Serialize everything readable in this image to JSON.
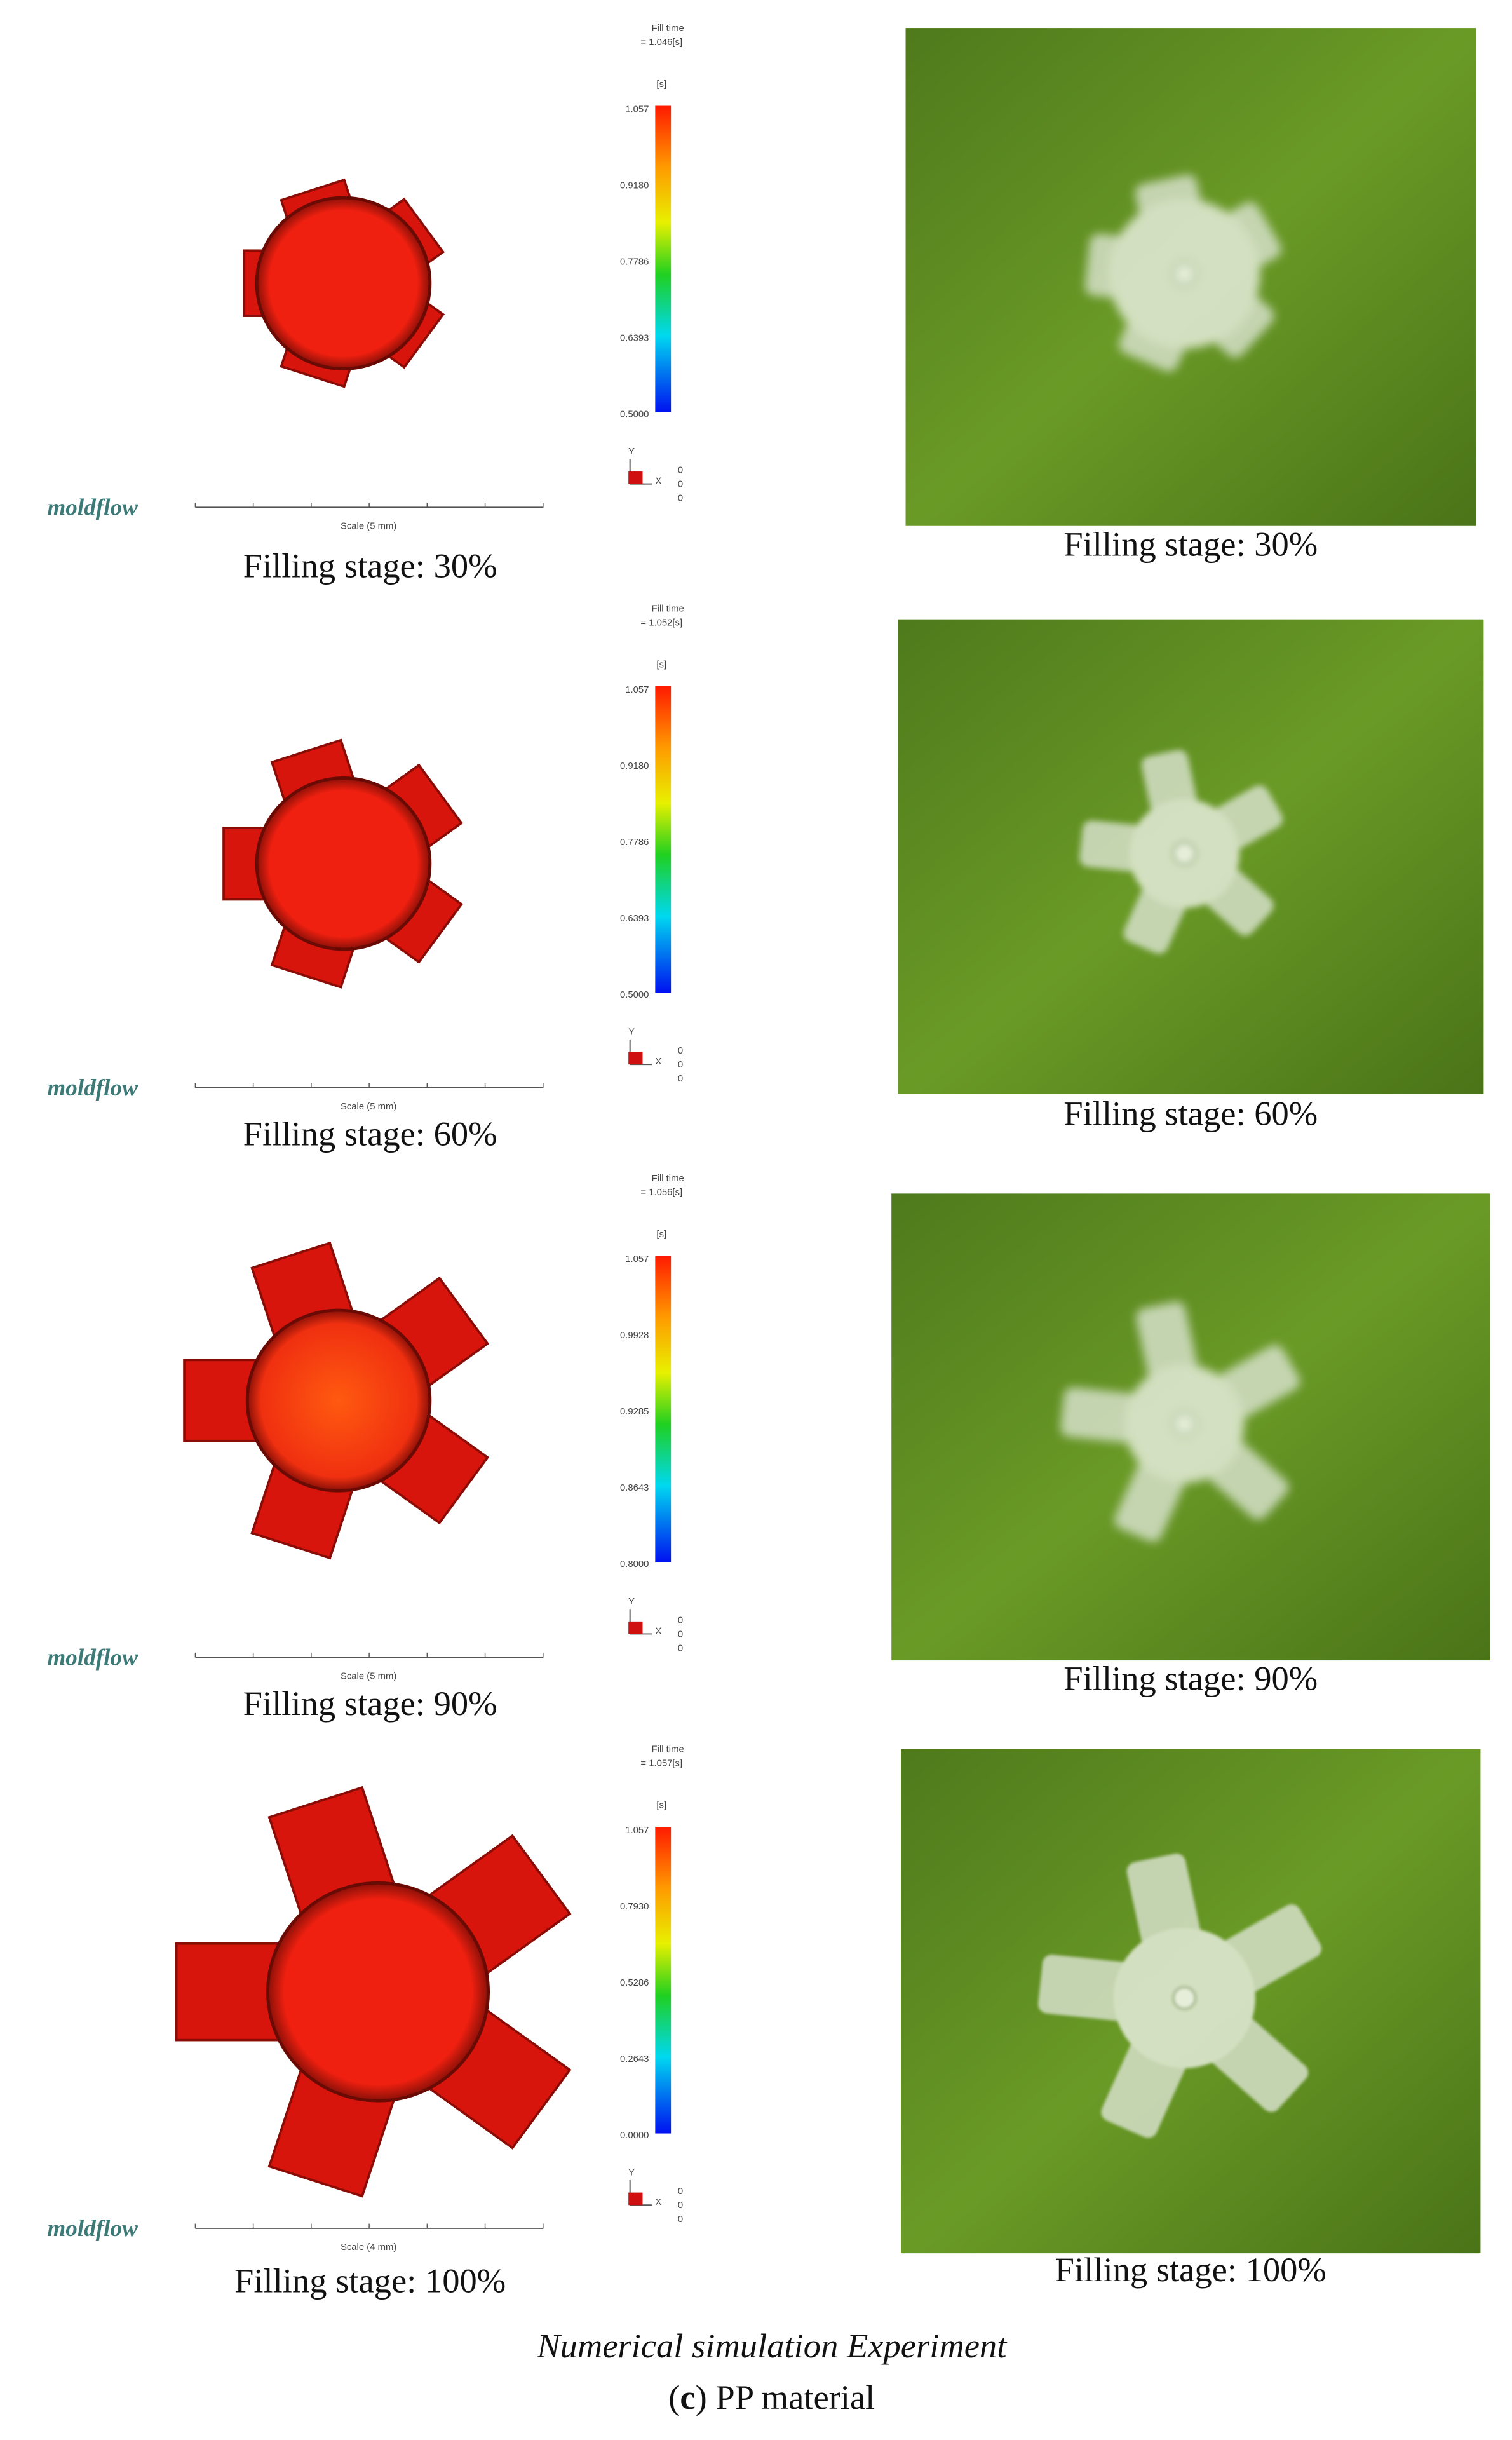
{
  "figure": {
    "rows": [
      {
        "simulation": {
          "logo": "moldflow",
          "fill_time_label": "Fill time",
          "fill_time": "= 1.046[s]",
          "unit": "[s]",
          "colorbar_ticks": [
            "1.057",
            "0.9180",
            "0.7786",
            "0.6393",
            "0.5000"
          ],
          "axis_labels": [
            "Y",
            "X",
            "0",
            "0",
            "0"
          ],
          "scale": "Scale (5 mm)",
          "caption": "Filling stage: 30%"
        },
        "experiment": {
          "caption": "Filling stage: 30%"
        }
      },
      {
        "simulation": {
          "logo": "moldflow",
          "fill_time_label": "Fill time",
          "fill_time": "= 1.052[s]",
          "unit": "[s]",
          "colorbar_ticks": [
            "1.057",
            "0.9180",
            "0.7786",
            "0.6393",
            "0.5000"
          ],
          "axis_labels": [
            "Y",
            "X",
            "0",
            "0",
            "0"
          ],
          "scale": "Scale (5 mm)",
          "caption": "Filling stage: 60%"
        },
        "experiment": {
          "caption": "Filling stage: 60%"
        }
      },
      {
        "simulation": {
          "logo": "moldflow",
          "fill_time_label": "Fill time",
          "fill_time": "= 1.056[s]",
          "unit": "[s]",
          "colorbar_ticks": [
            "1.057",
            "0.9928",
            "0.9285",
            "0.8643",
            "0.8000"
          ],
          "axis_labels": [
            "Y",
            "X",
            "0",
            "0",
            "0"
          ],
          "scale": "Scale (5 mm)",
          "caption": "Filling stage: 90%"
        },
        "experiment": {
          "caption": "Filling stage: 90%"
        }
      },
      {
        "simulation": {
          "logo": "moldflow",
          "fill_time_label": "Fill time",
          "fill_time": "= 1.057[s]",
          "unit": "[s]",
          "colorbar_ticks": [
            "1.057",
            "0.7930",
            "0.5286",
            "0.2643",
            "0.0000"
          ],
          "axis_labels": [
            "Y",
            "X",
            "0",
            "0",
            "0"
          ],
          "scale": "Scale (4 mm)",
          "caption": "Filling stage: 100%"
        },
        "experiment": {
          "caption": "Filling stage: 100%"
        }
      }
    ],
    "column_labels": "Numerical simulation Experiment",
    "subfigure_letter": "c",
    "subfigure_title": "PP material"
  }
}
